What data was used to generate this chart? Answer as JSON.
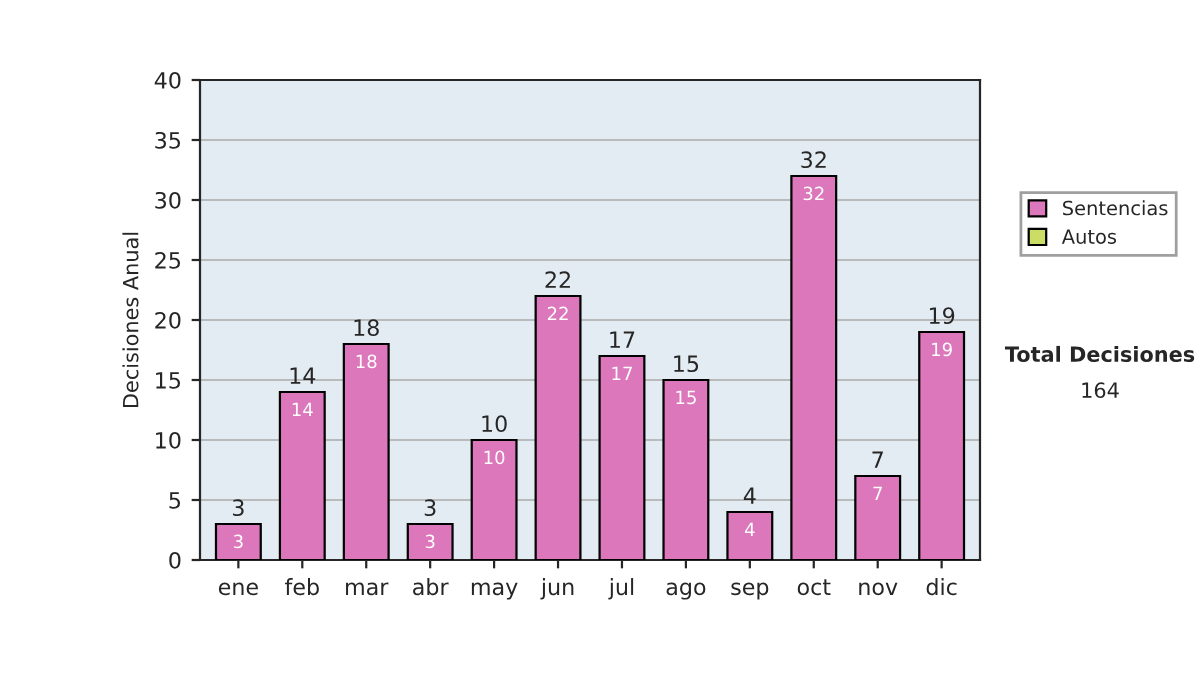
{
  "chart_data": {
    "type": "bar",
    "ylabel": "Decisiones Anual",
    "categories": [
      "ene",
      "feb",
      "mar",
      "abr",
      "may",
      "jun",
      "jul",
      "ago",
      "sep",
      "oct",
      "nov",
      "dic"
    ],
    "series": [
      {
        "name": "Sentencias",
        "color": "#dd77bb",
        "values": [
          3,
          14,
          18,
          3,
          10,
          22,
          17,
          15,
          4,
          32,
          7,
          19
        ],
        "value_labels": [
          "3",
          "14",
          "18",
          "3",
          "10",
          "22",
          "17",
          "15",
          "4",
          "32",
          "7",
          "19"
        ]
      },
      {
        "name": "Autos",
        "color": "#ccdd66",
        "values": [
          null,
          null,
          null,
          null,
          null,
          null,
          null,
          null,
          null,
          null,
          null,
          null
        ]
      }
    ],
    "stacked": true,
    "totals": [
      "3",
      "14",
      "18",
      "3",
      "10",
      "22",
      "17",
      "15",
      "4",
      "32",
      "7",
      "19"
    ],
    "ylim": [
      0,
      40
    ],
    "yticks": [
      0,
      5,
      10,
      15,
      20,
      25,
      30,
      35,
      40
    ],
    "grid": "y",
    "legend": "right",
    "annotations": [
      "Total Decisiones",
      "164"
    ]
  }
}
